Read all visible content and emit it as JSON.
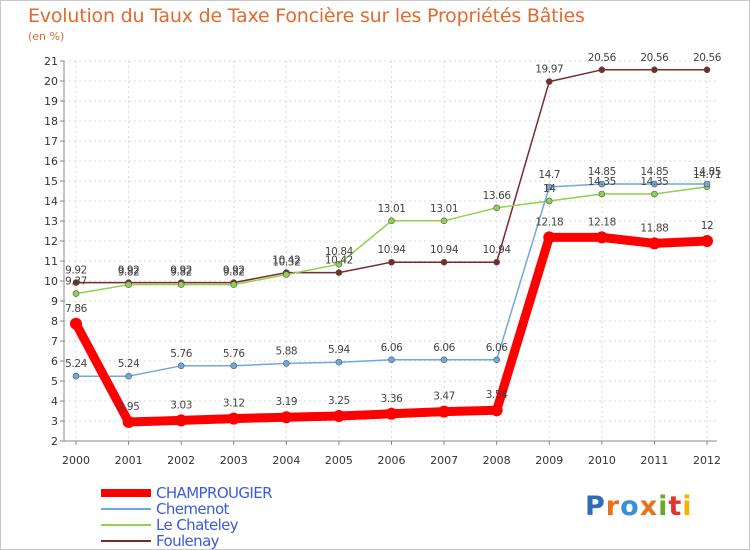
{
  "chart_data": {
    "type": "line",
    "title": "Evolution du Taux de Taxe Foncière sur les Propriétés Bâties",
    "ylabel": "(en %)",
    "x": [
      "2000",
      "2001",
      "2002",
      "2003",
      "2004",
      "2005",
      "2006",
      "2007",
      "2008",
      "2009",
      "2010",
      "2011",
      "2012"
    ],
    "ylim": [
      2,
      21
    ],
    "yticks": [
      "2",
      "3",
      "4",
      "5",
      "6",
      "7",
      "8",
      "9",
      "10",
      "11",
      "12",
      "13",
      "14",
      "15",
      "16",
      "17",
      "18",
      "19",
      "20",
      "21"
    ],
    "grid": true,
    "legend_position": "bottom-left",
    "series": [
      {
        "name": "CHAMPROUGIER",
        "color": "#ff0000",
        "values": [
          7.86,
          2.95,
          3.03,
          3.12,
          3.19,
          3.25,
          3.36,
          3.47,
          3.54,
          12.18,
          12.18,
          11.88,
          12
        ],
        "labels": [
          "7.86",
          "2.95",
          "3.03",
          "3.12",
          "3.19",
          "3.25",
          "3.36",
          "3.47",
          "3.54",
          "12.18",
          "12.18",
          "11.88",
          "12"
        ]
      },
      {
        "name": "Chemenot",
        "color": "#6fa8dc",
        "values": [
          5.24,
          5.24,
          5.76,
          5.76,
          5.88,
          5.94,
          6.06,
          6.06,
          6.06,
          14.7,
          14.85,
          14.85,
          14.85
        ],
        "labels": [
          "5.24",
          "5.24",
          "5.76",
          "5.76",
          "5.88",
          "5.94",
          "6.06",
          "6.06",
          "6.06",
          "14.7",
          "14.85",
          "14.85",
          "14.85"
        ]
      },
      {
        "name": "Le Chateley",
        "color": "#8fd14f",
        "values": [
          9.37,
          9.82,
          9.82,
          9.82,
          10.32,
          10.84,
          13.01,
          13.01,
          13.66,
          14,
          14.35,
          14.35,
          14.71
        ],
        "labels": [
          "9.37",
          "9.82",
          "9.82",
          "9.82",
          "10.32",
          "10.84",
          "13.01",
          "13.01",
          "13.66",
          "14",
          "14.35",
          "14.35",
          "14.71"
        ]
      },
      {
        "name": "Foulenay",
        "color": "#7b2a2a",
        "values": [
          9.92,
          9.92,
          9.92,
          9.92,
          10.42,
          10.42,
          10.94,
          10.94,
          10.94,
          19.97,
          20.56,
          20.56,
          20.56
        ],
        "labels": [
          "9.92",
          "9.92",
          "9.92",
          "9.92",
          "10.42",
          "10.42",
          "10.94",
          "10.94",
          "10.94",
          "19.97",
          "20.56",
          "20.56",
          "20.56"
        ]
      }
    ]
  },
  "legend": {
    "items": [
      "CHAMPROUGIER",
      "Chemenot",
      "Le Chateley",
      "Foulenay"
    ],
    "colors": [
      "#ff0000",
      "#6fa8dc",
      "#8fd14f",
      "#7b2a2a"
    ],
    "label_colors": [
      "#3b5bdb",
      "#3b5bdb",
      "#3b5bdb",
      "#3b5bdb"
    ]
  },
  "logo": {
    "letters": [
      "P",
      "r",
      "o",
      "x",
      "i",
      "t",
      "i"
    ],
    "colors": [
      "#2f6db5",
      "#e8731c",
      "#3a8fd6",
      "#e8731c",
      "#6aaa2a",
      "#e3342f",
      "#f0b400"
    ]
  }
}
